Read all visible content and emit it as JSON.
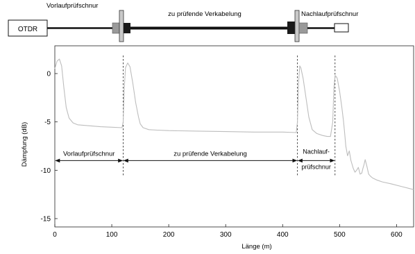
{
  "setup": {
    "otdr_label": "OTDR",
    "launch_cord_label": "Vorlaufprüfschnur",
    "cabling_label": "zu prüfende Verkabelung",
    "tail_cord_label": "Nachlaufprüfschnur"
  },
  "chart_data": {
    "type": "line",
    "xlabel": "Länge  (m)",
    "ylabel": "Dämpfung  (dB)",
    "xlim": [
      0,
      630
    ],
    "ylim": [
      -16,
      2.5
    ],
    "x_ticks": [
      0,
      100,
      200,
      300,
      400,
      500,
      600
    ],
    "y_ticks": [
      0,
      -5,
      -10,
      -15
    ],
    "x_tick_labels": [
      "0",
      "100",
      "200",
      "300",
      "400",
      "500",
      "600"
    ],
    "y_tick_labels": [
      "0",
      "-5",
      "-10",
      "-15"
    ],
    "grid": false,
    "series": [
      {
        "color": "#bdbdbd",
        "x": [
          0,
          4,
          8,
          12,
          16,
          20,
          25,
          32,
          40,
          60,
          80,
          100,
          118,
          120,
          122,
          124,
          128,
          132,
          137,
          142,
          147,
          150,
          155,
          165,
          180,
          200,
          250,
          300,
          350,
          400,
          424,
          426,
          428,
          430,
          432,
          436,
          441,
          446,
          452,
          460,
          470,
          478,
          484,
          488,
          490,
          492,
          494,
          496,
          500,
          504,
          507,
          509,
          511,
          514,
          517,
          520,
          524,
          527,
          530,
          533,
          536,
          539,
          541,
          543,
          545,
          548,
          551,
          554,
          558,
          565,
          575,
          590,
          610,
          630
        ],
        "y": [
          0.5,
          1.3,
          1.5,
          0.8,
          -1.5,
          -3.5,
          -4.6,
          -5.1,
          -5.3,
          -5.4,
          -5.5,
          -5.55,
          -5.6,
          -5.0,
          -1.5,
          0.6,
          1.1,
          0.7,
          -1.0,
          -3.0,
          -4.5,
          -5.2,
          -5.6,
          -5.8,
          -5.85,
          -5.9,
          -5.95,
          -6.0,
          -6.05,
          -6.05,
          -6.1,
          -5.0,
          -1.0,
          0.8,
          0.6,
          -0.5,
          -2.5,
          -4.5,
          -5.8,
          -6.2,
          -6.4,
          -6.5,
          -6.5,
          -5.0,
          -1.5,
          -0.2,
          -0.3,
          -0.5,
          -1.8,
          -3.5,
          -5.0,
          -6.2,
          -7.5,
          -8.5,
          -8.0,
          -9.0,
          -9.8,
          -10.2,
          -10.0,
          -9.7,
          -10.4,
          -10.3,
          -9.8,
          -9.4,
          -8.9,
          -9.6,
          -10.4,
          -10.6,
          -10.8,
          -11.0,
          -11.2,
          -11.4,
          -11.7,
          -12.0
        ]
      }
    ],
    "markers": [
      {
        "x": 120,
        "type": "dashed-vertical-line"
      },
      {
        "x": 426,
        "type": "dashed-vertical-line"
      },
      {
        "x": 492,
        "type": "dashed-vertical-line"
      }
    ],
    "annotations": [
      {
        "label": "Vorlaufprüfschnur",
        "x_start": 0,
        "x_end": 120,
        "y": -9
      },
      {
        "label": "zu prüfende Verkabelung",
        "x_start": 120,
        "x_end": 426,
        "y": -9
      },
      {
        "label_lines": [
          "Nachlauf-",
          "prüfschnur"
        ],
        "x_start": 426,
        "x_end": 492,
        "y": -9
      }
    ]
  }
}
